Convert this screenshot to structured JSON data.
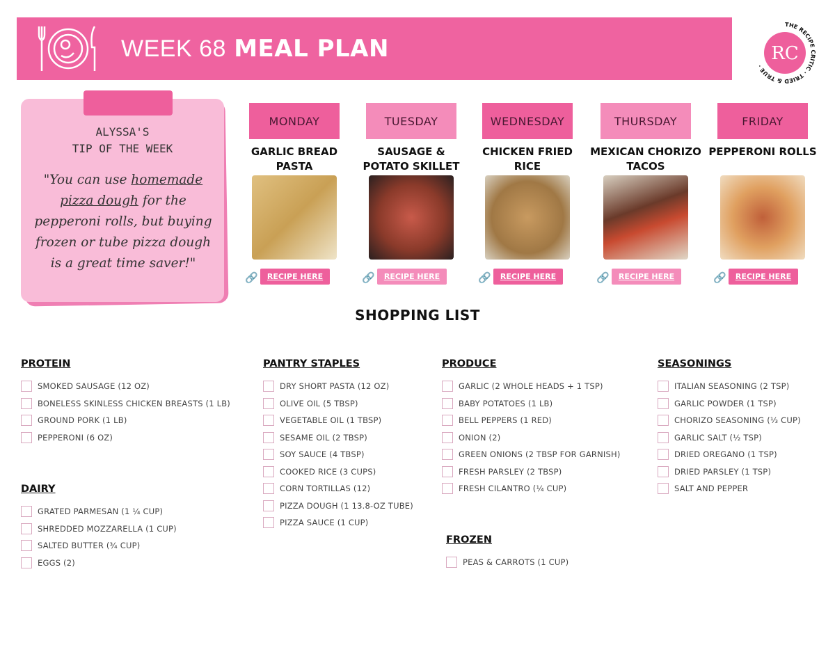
{
  "header": {
    "title_light": "WEEK 68",
    "title_bold": "MEAL PLAN",
    "icon": "plate-fork-knife-icon",
    "logo_text": "THE RECIPE CRITIC · TRIED & TRUE",
    "logo_initials": "RC"
  },
  "tip": {
    "heading1": "ALYSSA'S",
    "heading2": "TIP OF THE WEEK",
    "quote_pre": "\"You can use ",
    "quote_link": "homemade pizza dough",
    "quote_post": " for the pepperoni rolls, but buying frozen or tube pizza dough is a great time saver!\""
  },
  "days": [
    {
      "day": "MONDAY",
      "meal": "GARLIC BREAD PASTA",
      "button": "RECIPE HERE",
      "color": "#ee5f9c",
      "img": "linear-gradient(135deg,#e0c080,#c9a055 50%,#efe4c8)"
    },
    {
      "day": "TUESDAY",
      "meal": "SAUSAGE & POTATO SKILLET",
      "button": "RECIPE HERE",
      "color": "#f48cba",
      "img": "radial-gradient(circle,#c85a4a,#8a3a2a 55%,#2a2020)"
    },
    {
      "day": "WEDNESDAY",
      "meal": "CHICKEN FRIED RICE",
      "button": "RECIPE HERE",
      "color": "#ee5f9c",
      "img": "radial-gradient(circle,#c89a60,#a07845 60%,#d8d0c0)"
    },
    {
      "day": "THURSDAY",
      "meal": "MEXICAN CHORIZO TACOS",
      "button": "RECIPE HERE",
      "color": "#f48cba",
      "img": "linear-gradient(160deg,#d8cfc0,#6a3a2a 40%,#c84a30 60%,#e0d8c8)"
    },
    {
      "day": "FRIDAY",
      "meal": "PEPPERONI ROLLS",
      "button": "RECIPE HERE",
      "color": "#ee5f9c",
      "img": "radial-gradient(circle,#c0603a,#e0a060 50%,#f0dcc0)"
    }
  ],
  "shopping": {
    "title": "SHOPPING LIST",
    "sections": [
      {
        "name": "PROTEIN",
        "items": [
          "SMOKED SAUSAGE (12 OZ)",
          "BONELESS SKINLESS CHICKEN BREASTS  (1 LB)",
          "GROUND PORK (1 LB)",
          "PEPPERONI (6 OZ)"
        ]
      },
      {
        "name": "PANTRY STAPLES",
        "items": [
          "DRY SHORT PASTA (12 OZ)",
          "OLIVE OIL (5 TBSP)",
          "VEGETABLE OIL (1 TBSP)",
          "SESAME OIL (2 TBSP)",
          "SOY SAUCE (4 TBSP)",
          "COOKED RICE (3 CUPS)",
          "CORN TORTILLAS (12)",
          "PIZZA DOUGH (1 13.8-OZ TUBE)",
          "PIZZA SAUCE (1 CUP)"
        ]
      },
      {
        "name": "PRODUCE",
        "items": [
          "GARLIC (2 WHOLE HEADS + 1 TSP)",
          "BABY POTATOES (1 LB)",
          "BELL PEPPERS (1 RED)",
          "ONION (2)",
          "GREEN ONIONS (2 TBSP FOR GARNISH)",
          "FRESH PARSLEY (2 TBSP)",
          "FRESH CILANTRO (¼ CUP)"
        ]
      },
      {
        "name": "SEASONINGS",
        "items": [
          "ITALIAN SEASONING (2 TSP)",
          "GARLIC POWDER (1 TSP)",
          "CHORIZO SEASONING (⅓ CUP)",
          "GARLIC SALT (½ TSP)",
          "DRIED OREGANO (1 TSP)",
          "DRIED PARSLEY (1 TSP)",
          "SALT AND PEPPER"
        ]
      },
      {
        "name": "DAIRY",
        "items": [
          "GRATED PARMESAN (1 ¼ CUP)",
          "SHREDDED MOZZARELLA (1 CUP)",
          "SALTED BUTTER (¾ CUP)",
          "EGGS (2)"
        ]
      },
      {
        "name": "FROZEN",
        "items": [
          "PEAS & CARROTS (1 CUP)"
        ]
      }
    ]
  },
  "colors": {
    "accent": "#ef63a0",
    "note": "#f9bcd8",
    "day_light": "#f48cba",
    "day_dark": "#ee5f9c"
  }
}
